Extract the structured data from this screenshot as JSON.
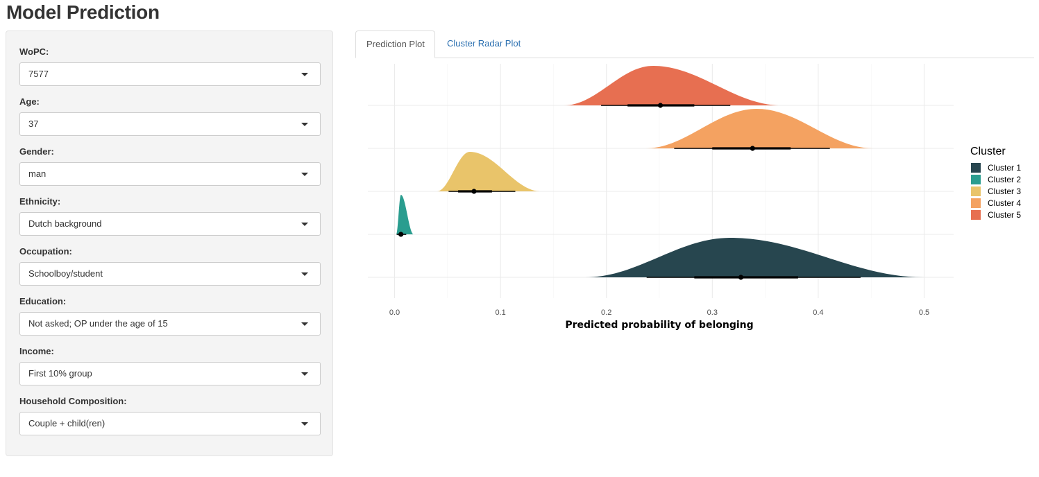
{
  "app": {
    "title": "Model Prediction"
  },
  "sidebar": {
    "fields": [
      {
        "id": "wopc",
        "label": "WoPC:",
        "value": "7577"
      },
      {
        "id": "age",
        "label": "Age:",
        "value": "37"
      },
      {
        "id": "gender",
        "label": "Gender:",
        "value": "man"
      },
      {
        "id": "ethnicity",
        "label": "Ethnicity:",
        "value": "Dutch background"
      },
      {
        "id": "occupation",
        "label": "Occupation:",
        "value": "Schoolboy/student"
      },
      {
        "id": "education",
        "label": "Education:",
        "value": "Not asked; OP under the age of 15"
      },
      {
        "id": "income",
        "label": "Income:",
        "value": "First 10% group"
      },
      {
        "id": "household",
        "label": "Household Composition:",
        "value": "Couple + child(ren)"
      }
    ]
  },
  "tabs": [
    {
      "label": "Prediction Plot",
      "active": true
    },
    {
      "label": "Cluster Radar Plot",
      "active": false
    }
  ],
  "chart_data": {
    "type": "area",
    "subtype": "ridgeline density with point-interval",
    "xlabel": "Predicted probability of belonging",
    "ylabel": "",
    "xlim": [
      -0.025,
      0.52
    ],
    "xticks": [
      0.0,
      0.1,
      0.2,
      0.3,
      0.4,
      0.5
    ],
    "xtick_labels": [
      "0.0",
      "0.1",
      "0.2",
      "0.3",
      "0.4",
      "0.5"
    ],
    "grid": true,
    "legend": {
      "title": "Cluster",
      "position": "right"
    },
    "series": [
      {
        "name": "Cluster 1",
        "color": "#27464f",
        "order": 1,
        "density_range": [
          0.18,
          0.5
        ],
        "peak": 0.317,
        "point": 0.327,
        "interval_inner": [
          0.283,
          0.381
        ],
        "interval_outer": [
          0.238,
          0.44
        ]
      },
      {
        "name": "Cluster 2",
        "color": "#2a9d8f",
        "order": 2,
        "density_range": [
          0.0015,
          0.018
        ],
        "peak": 0.006,
        "point": 0.006,
        "interval_inner": [
          0.004,
          0.008
        ],
        "interval_outer": [
          0.002,
          0.011
        ]
      },
      {
        "name": "Cluster 3",
        "color": "#e9c46a",
        "order": 3,
        "density_range": [
          0.04,
          0.138
        ],
        "peak": 0.071,
        "point": 0.075,
        "interval_inner": [
          0.06,
          0.092
        ],
        "interval_outer": [
          0.051,
          0.114
        ]
      },
      {
        "name": "Cluster 4",
        "color": "#f4a261",
        "order": 4,
        "density_range": [
          0.237,
          0.452
        ],
        "peak": 0.342,
        "point": 0.338,
        "interval_inner": [
          0.3,
          0.374
        ],
        "interval_outer": [
          0.264,
          0.411
        ]
      },
      {
        "name": "Cluster 5",
        "color": "#e76f51",
        "order": 5,
        "density_range": [
          0.16,
          0.365
        ],
        "peak": 0.244,
        "point": 0.251,
        "interval_inner": [
          0.22,
          0.283
        ],
        "interval_outer": [
          0.195,
          0.317
        ]
      }
    ]
  }
}
